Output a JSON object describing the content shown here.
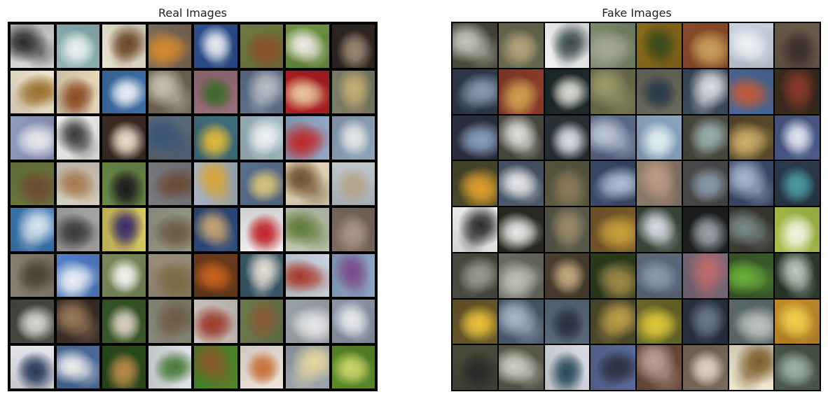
{
  "panels": {
    "real": {
      "title": "Real Images",
      "rows": 8,
      "cols": 8,
      "tiles": [
        {
          "bg": "#d8d8d8",
          "fg": "#2a2a2a"
        },
        {
          "bg": "#8fb4b6",
          "fg": "#e9f1f1"
        },
        {
          "bg": "#e8e4d0",
          "fg": "#6b4425"
        },
        {
          "bg": "#7c6a57",
          "fg": "#d88a2c"
        },
        {
          "bg": "#2a4f8e",
          "fg": "#e9ecf2"
        },
        {
          "bg": "#6f7a3f",
          "fg": "#8a4f2b"
        },
        {
          "bg": "#6b8f3f",
          "fg": "#f0ece4"
        },
        {
          "bg": "#2d2520",
          "fg": "#9a8674"
        },
        {
          "bg": "#efe6cf",
          "fg": "#9a6e2a"
        },
        {
          "bg": "#e7d8b8",
          "fg": "#8a4a25"
        },
        {
          "bg": "#3d6ea6",
          "fg": "#eaeef4"
        },
        {
          "bg": "#6e6550",
          "fg": "#c9c2b0"
        },
        {
          "bg": "#9a6e7a",
          "fg": "#3d6a2a"
        },
        {
          "bg": "#5c6e88",
          "fg": "#b9bec6"
        },
        {
          "bg": "#b11d22",
          "fg": "#e7c9a0"
        },
        {
          "bg": "#7c7d66",
          "fg": "#c4ae72"
        },
        {
          "bg": "#8f9bc0",
          "fg": "#e8e9ee"
        },
        {
          "bg": "#f2f2f2",
          "fg": "#3a3a3a"
        },
        {
          "bg": "#3a2a24",
          "fg": "#e8dbc8"
        },
        {
          "bg": "#5a6a78",
          "fg": "#3a5478"
        },
        {
          "bg": "#3f6e7d",
          "fg": "#e0b83a"
        },
        {
          "bg": "#9fb8c2",
          "fg": "#eef2f4"
        },
        {
          "bg": "#93a9c6",
          "fg": "#c0282a"
        },
        {
          "bg": "#8ea4b9",
          "fg": "#e5e7e8"
        },
        {
          "bg": "#6c7b3e",
          "fg": "#6e4b32"
        },
        {
          "bg": "#d6cfc0",
          "fg": "#a47a4e"
        },
        {
          "bg": "#6a8a48",
          "fg": "#1c1c1c"
        },
        {
          "bg": "#7a7c82",
          "fg": "#6a4b36"
        },
        {
          "bg": "#a7b5c4",
          "fg": "#d9a536"
        },
        {
          "bg": "#5a6f8e",
          "fg": "#d6c37a"
        },
        {
          "bg": "#e8dcc0",
          "fg": "#6e4f2a"
        },
        {
          "bg": "#c0c6cc",
          "fg": "#b4a48a"
        },
        {
          "bg": "#3b77b2",
          "fg": "#dbe6ee"
        },
        {
          "bg": "#a5a5a5",
          "fg": "#3a3a3a"
        },
        {
          "bg": "#d7c860",
          "fg": "#3a2a6a"
        },
        {
          "bg": "#9a9a8a",
          "fg": "#6a5a42"
        },
        {
          "bg": "#2d4a7a",
          "fg": "#c9a472"
        },
        {
          "bg": "#f0f0f0",
          "fg": "#c0242a"
        },
        {
          "bg": "#bfc9b0",
          "fg": "#5f7a3a"
        },
        {
          "bg": "#7a6a5e",
          "fg": "#a89684"
        },
        {
          "bg": "#8a8070",
          "fg": "#4a4036"
        },
        {
          "bg": "#4f7fc8",
          "fg": "#eef2f6"
        },
        {
          "bg": "#7a8a5a",
          "fg": "#f2f2ee"
        },
        {
          "bg": "#9a8e7a",
          "fg": "#7a6a40"
        },
        {
          "bg": "#6a3a1a",
          "fg": "#c8621e"
        },
        {
          "bg": "#3a5a6a",
          "fg": "#e8e0d6"
        },
        {
          "bg": "#c9d4e0",
          "fg": "#a83a2a"
        },
        {
          "bg": "#8ea8c6",
          "fg": "#7a4a8a"
        },
        {
          "bg": "#4a4a44",
          "fg": "#d6d6d0"
        },
        {
          "bg": "#3a2e26",
          "fg": "#9a7a5a"
        },
        {
          "bg": "#3a5a2a",
          "fg": "#d8cfc0"
        },
        {
          "bg": "#8a8a7a",
          "fg": "#6e5a44"
        },
        {
          "bg": "#cfc6c0",
          "fg": "#9a3a2a"
        },
        {
          "bg": "#6a7a4a",
          "fg": "#8a5a3a"
        },
        {
          "bg": "#9aa2aa",
          "fg": "#e6e6e6"
        },
        {
          "bg": "#8a96a6",
          "fg": "#e8eaee"
        },
        {
          "bg": "#e4e6ec",
          "fg": "#2a3a5a"
        },
        {
          "bg": "#4a6a9a",
          "fg": "#f0f0f0"
        },
        {
          "bg": "#2a4a1a",
          "fg": "#b88a4a"
        },
        {
          "bg": "#dfe4e8",
          "fg": "#4a7a3a"
        },
        {
          "bg": "#4a8a2a",
          "fg": "#8a5a2a"
        },
        {
          "bg": "#f0e6dc",
          "fg": "#c8703a"
        },
        {
          "bg": "#9aa2ae",
          "fg": "#e6d8a0"
        },
        {
          "bg": "#5a8a2a",
          "fg": "#c9d46a"
        }
      ]
    },
    "fake": {
      "title": "Fake Images",
      "rows": 8,
      "cols": 8,
      "tiles": [
        {
          "bg": "#4a4a3a",
          "fg": "#c8c8c0"
        },
        {
          "bg": "#6a6a52",
          "fg": "#b2a27a"
        },
        {
          "bg": "#f4f4f4",
          "fg": "#3a4a4a"
        },
        {
          "bg": "#7a8a6a",
          "fg": "#a8a89a"
        },
        {
          "bg": "#8a6a1a",
          "fg": "#3a4a1a"
        },
        {
          "bg": "#8a4a2a",
          "fg": "#c8a05a"
        },
        {
          "bg": "#c8d2e0",
          "fg": "#eef0f4"
        },
        {
          "bg": "#6a5a4a",
          "fg": "#3a2e2a"
        },
        {
          "bg": "#2e3a4a",
          "fg": "#8a9ab0"
        },
        {
          "bg": "#8a3a2a",
          "fg": "#d0a050"
        },
        {
          "bg": "#1e2a2a",
          "fg": "#d8d8d0"
        },
        {
          "bg": "#6a6a4a",
          "fg": "#9a9a6a"
        },
        {
          "bg": "#6a6a5a",
          "fg": "#2a3a4a"
        },
        {
          "bg": "#3a4a5a",
          "fg": "#e0e0e6"
        },
        {
          "bg": "#4a6a9a",
          "fg": "#c05a3a"
        },
        {
          "bg": "#3a2a1e",
          "fg": "#8a3a2a"
        },
        {
          "bg": "#2a3040",
          "fg": "#8aa0c0"
        },
        {
          "bg": "#4a4a40",
          "fg": "#e0e0dc"
        },
        {
          "bg": "#2a3038",
          "fg": "#d8dce4"
        },
        {
          "bg": "#5a6a8a",
          "fg": "#c0c8d8"
        },
        {
          "bg": "#8aa6c0",
          "fg": "#e0eef4"
        },
        {
          "bg": "#4a4a3e",
          "fg": "#9ab0b0"
        },
        {
          "bg": "#5a4a2a",
          "fg": "#d0b06a"
        },
        {
          "bg": "#4a5a8a",
          "fg": "#e0e4f0"
        },
        {
          "bg": "#4a4a2a",
          "fg": "#e0a030"
        },
        {
          "bg": "#4a5a6a",
          "fg": "#e8e8ec"
        },
        {
          "bg": "#5a5a42",
          "fg": "#8a7a5a"
        },
        {
          "bg": "#3a4a6a",
          "fg": "#b0c0d8"
        },
        {
          "bg": "#8a7a6a",
          "fg": "#c09a88"
        },
        {
          "bg": "#4a4a4a",
          "fg": "#8a9aa8"
        },
        {
          "bg": "#3a4a6a",
          "fg": "#a8b8d0"
        },
        {
          "bg": "#2a3a4a",
          "fg": "#4a9aa0"
        },
        {
          "bg": "#f4f4f4",
          "fg": "#2a2a2a"
        },
        {
          "bg": "#2a2a22",
          "fg": "#e8ece8"
        },
        {
          "bg": "#5a5a4a",
          "fg": "#9a8a6a"
        },
        {
          "bg": "#7a5a2a",
          "fg": "#c8a03a"
        },
        {
          "bg": "#3a4a3a",
          "fg": "#d8dce4"
        },
        {
          "bg": "#1e2020",
          "fg": "#9aa0a8"
        },
        {
          "bg": "#3a3a30",
          "fg": "#7a8a8a"
        },
        {
          "bg": "#a8c04a",
          "fg": "#f0f4e0"
        },
        {
          "bg": "#4a4a40",
          "fg": "#9a9a90"
        },
        {
          "bg": "#6a6a60",
          "fg": "#c0c0b8"
        },
        {
          "bg": "#4a4030",
          "fg": "#c0a880"
        },
        {
          "bg": "#2a3a1a",
          "fg": "#a08a4a"
        },
        {
          "bg": "#5a6a7a",
          "fg": "#8a9aaa"
        },
        {
          "bg": "#7a6a7a",
          "fg": "#c06a6a"
        },
        {
          "bg": "#3a5a2a",
          "fg": "#6ab03a"
        },
        {
          "bg": "#2a3a2a",
          "fg": "#c0c8c0"
        },
        {
          "bg": "#6a5a2a",
          "fg": "#e8c03a"
        },
        {
          "bg": "#4a5a6a",
          "fg": "#a8b8c8"
        },
        {
          "bg": "#5a6a7a",
          "fg": "#2a3040"
        },
        {
          "bg": "#4a4a2a",
          "fg": "#c0a04a"
        },
        {
          "bg": "#6a6a2a",
          "fg": "#e0c83a"
        },
        {
          "bg": "#2a3040",
          "fg": "#6a7a8a"
        },
        {
          "bg": "#5a6a6a",
          "fg": "#c0c4c0"
        },
        {
          "bg": "#c08a2a",
          "fg": "#f0d04a"
        },
        {
          "bg": "#4a4a3a",
          "fg": "#2a2a2a"
        },
        {
          "bg": "#5a5a4a",
          "fg": "#d0d0c8"
        },
        {
          "bg": "#d8dce4",
          "fg": "#2a4a5a"
        },
        {
          "bg": "#5a6a9a",
          "fg": "#2a3040"
        },
        {
          "bg": "#6a4a3a",
          "fg": "#c0a098"
        },
        {
          "bg": "#7a6a5a",
          "fg": "#e0d0c0"
        },
        {
          "bg": "#f0e8d0",
          "fg": "#7a5a2a"
        },
        {
          "bg": "#4a5a4a",
          "fg": "#a0b0a8"
        }
      ]
    }
  }
}
